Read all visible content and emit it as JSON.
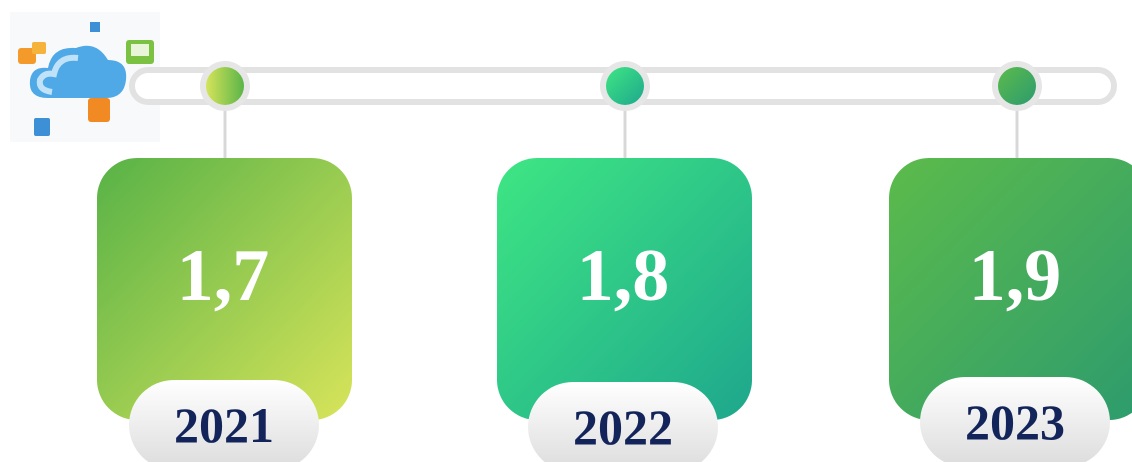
{
  "items": [
    {
      "value": "1,7",
      "year": "2021"
    },
    {
      "value": "1,8",
      "year": "2022"
    },
    {
      "value": "1,9",
      "year": "2023"
    }
  ]
}
